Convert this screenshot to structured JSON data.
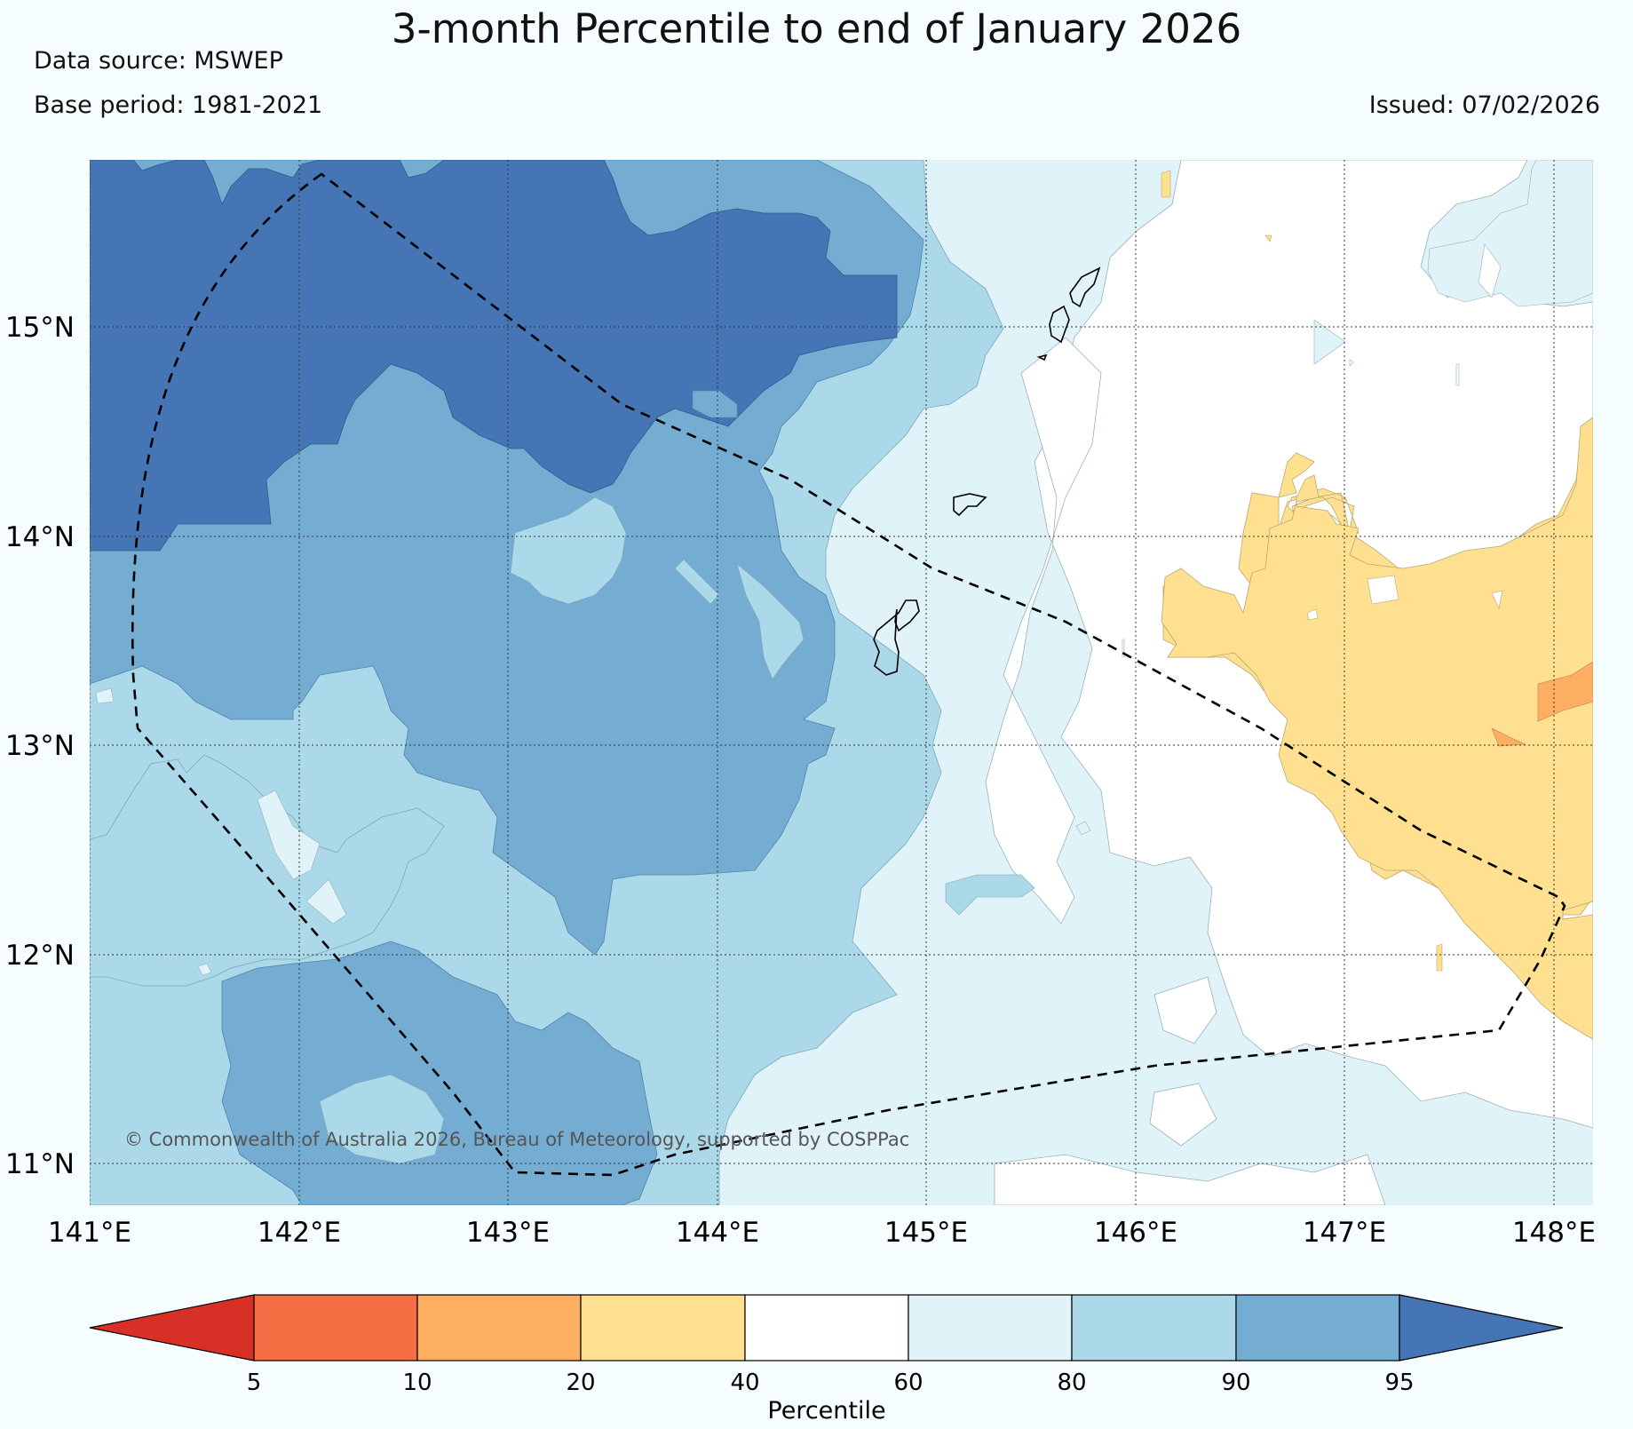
{
  "header": {
    "title": "3-month Percentile to end of January 2026",
    "data_source": "Data source: MSWEP",
    "base_period": "Base period: 1981-2021",
    "issued": "Issued: 07/02/2026"
  },
  "map": {
    "lon_ticks": [
      "141°E",
      "142°E",
      "143°E",
      "144°E",
      "145°E",
      "146°E",
      "147°E",
      "148°E"
    ],
    "lat_ticks": [
      "15°N",
      "14°N",
      "13°N",
      "12°N",
      "11°N"
    ],
    "copyright": "© Commonwealth of Australia 2026, Bureau of Meteorology, supported by COSPPac"
  },
  "colorbar": {
    "title": "Percentile",
    "ticks": [
      "5",
      "10",
      "20",
      "40",
      "60",
      "80",
      "90",
      "95"
    ],
    "colors": {
      "below_5": "#d73027",
      "p5_10": "#f46d43",
      "p10_20": "#fdae61",
      "p20_40": "#fee090",
      "p40_60": "#ffffff",
      "p60_80": "#e0f3f8",
      "p80_90": "#abd9e9",
      "p90_95": "#74add1",
      "above_95": "#4575b4"
    }
  }
}
